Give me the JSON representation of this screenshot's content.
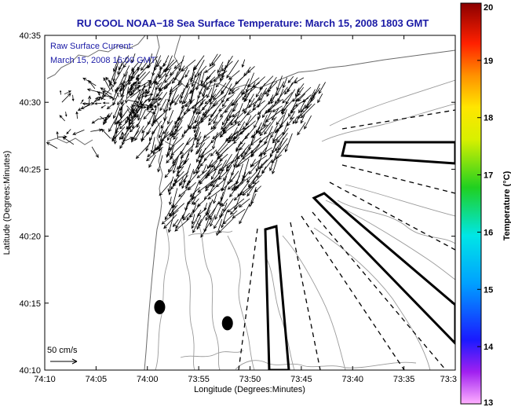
{
  "chart_data": {
    "type": "map-vector-field",
    "title": "RU COOL  NOAA−18  Sea Surface Temperature:  March 15, 2008 1803 GMT",
    "annotations": {
      "current_label": "Raw Surface Current:",
      "current_time": "March 15, 2008 16:00 GMT",
      "scale_label": "50 cm/s"
    },
    "xlabel": "Longitude (Degrees:Minutes)",
    "ylabel": "Latitude (Degrees:Minutes)",
    "x_ticks": [
      "74:10",
      "74:05",
      "74:00",
      "73:55",
      "73:50",
      "73:45",
      "73:40",
      "73:35",
      "73:3"
    ],
    "y_ticks": [
      "40:10",
      "40:15",
      "40:20",
      "40:25",
      "40:30",
      "40:35"
    ],
    "xlim_minutes_west": [
      70,
      30
    ],
    "ylim_minutes_north": [
      10,
      35
    ],
    "colorbar": {
      "label": "Temperature (°C)",
      "ticks": [
        "13",
        "14",
        "15",
        "16",
        "17",
        "18",
        "19",
        "20"
      ],
      "range": [
        13,
        20
      ]
    },
    "buoy_markers": [
      {
        "lon_min_w": 58.8,
        "lat_min_n": 14.7
      },
      {
        "lon_min_w": 52.2,
        "lat_min_n": 13.5
      }
    ],
    "vector_scale_cm_s": 50
  }
}
